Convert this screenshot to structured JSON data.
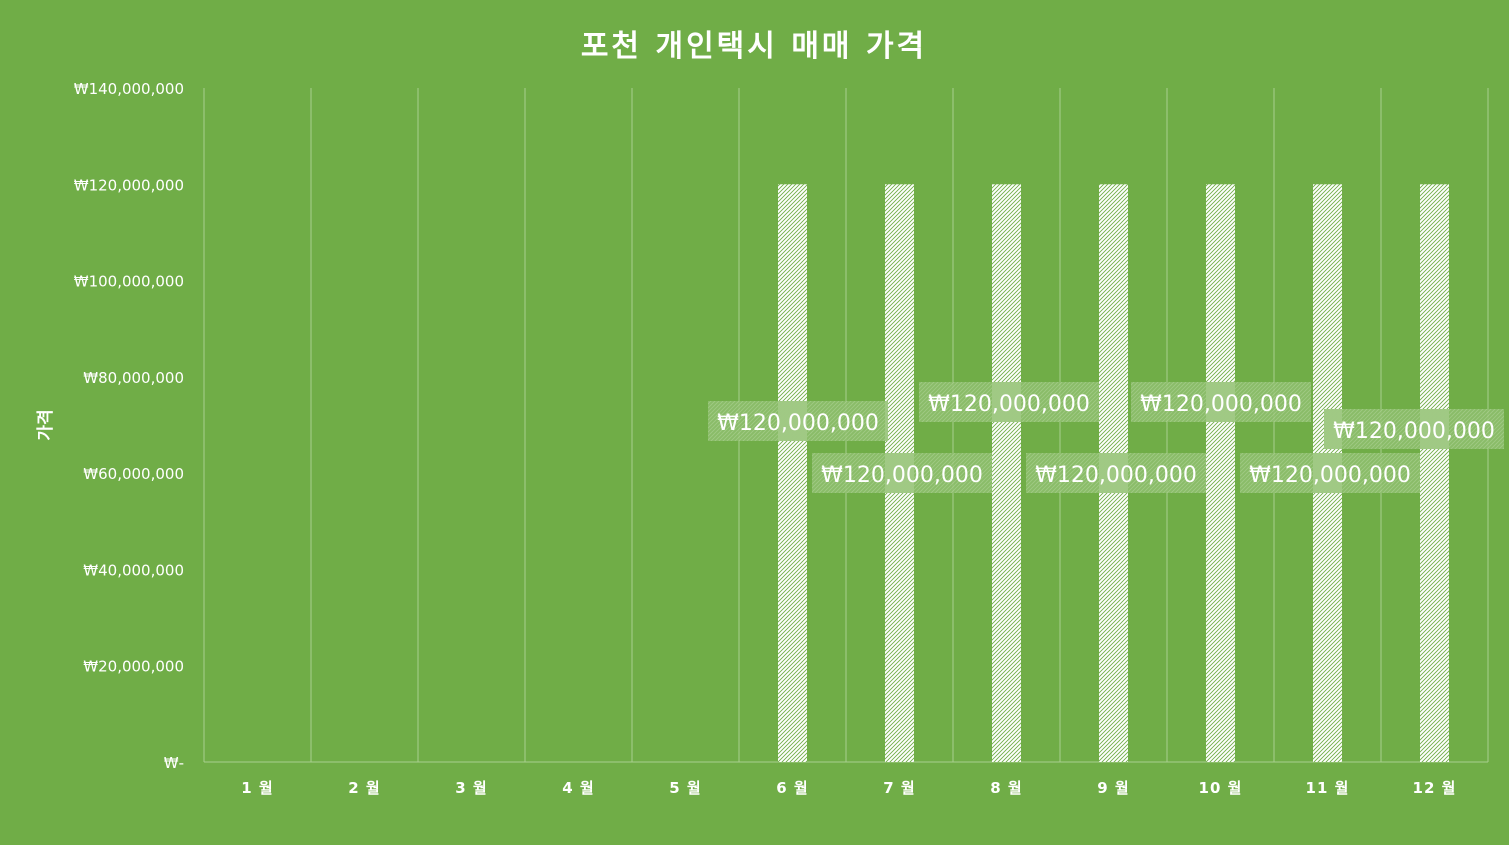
{
  "chart_data": {
    "type": "bar",
    "title": "포천 개인택시 매매 가격",
    "xlabel": "",
    "ylabel": "가격",
    "categories": [
      "1 월",
      "2 월",
      "3 월",
      "4 월",
      "5 월",
      "6 월",
      "7 월",
      "8 월",
      "9 월",
      "10 월",
      "11 월",
      "12 월"
    ],
    "series": [
      {
        "values": [
          null,
          null,
          null,
          null,
          null,
          120000000,
          120000000,
          120000000,
          120000000,
          120000000,
          120000000,
          120000000
        ]
      }
    ],
    "data_labels": [
      "",
      "",
      "",
      "",
      "",
      "₩120,000,000",
      "₩120,000,000",
      "₩120,000,000",
      "₩120,000,000",
      "₩120,000,000",
      "₩120,000,000",
      "₩120,000,000"
    ],
    "ylim": [
      0,
      140000000
    ],
    "yticks": [
      0,
      20000000,
      40000000,
      60000000,
      80000000,
      100000000,
      120000000,
      140000000
    ],
    "ytick_labels": [
      "₩-",
      "₩20,000,000",
      "₩40,000,000",
      "₩60,000,000",
      "₩80,000,000",
      "₩100,000,000",
      "₩120,000,000",
      "₩140,000,000"
    ],
    "grid": "vertical",
    "legend": "none",
    "colors": {
      "background": "#70AD47",
      "bar_fill": "#FFFFFF",
      "bar_pattern": "#70AD47",
      "text": "#FFFFFF",
      "grid": "#A9CF8F"
    }
  }
}
